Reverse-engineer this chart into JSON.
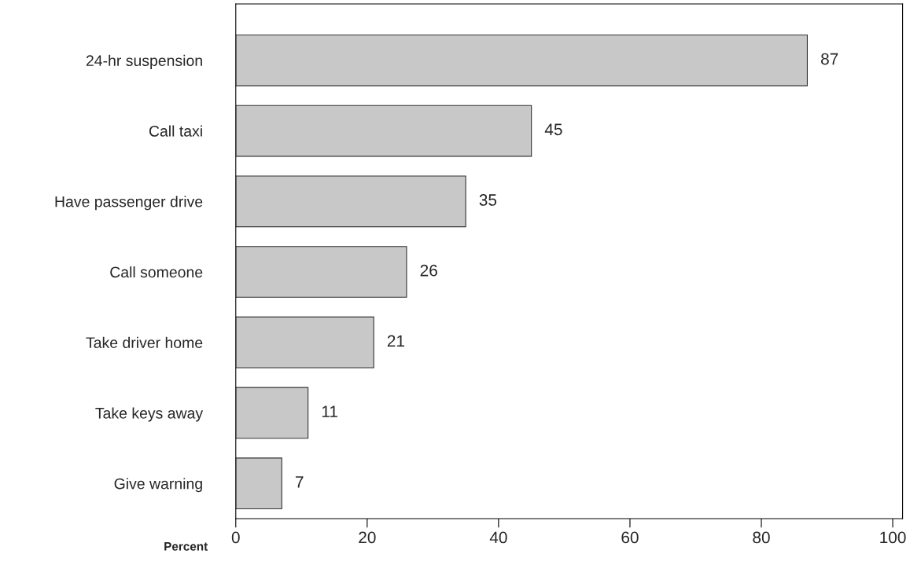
{
  "chart_data": {
    "type": "bar",
    "orientation": "horizontal",
    "xlabel": "Percent",
    "categories": [
      "24-hr suspension",
      "Call taxi",
      "Have passenger drive",
      "Call someone",
      "Take driver home",
      "Take keys away",
      "Give warning"
    ],
    "values": [
      87,
      45,
      35,
      26,
      21,
      11,
      7
    ],
    "color": "#c8c8c8",
    "xlim": [
      0,
      101.5
    ],
    "xticks": [
      0,
      20,
      40,
      60,
      80,
      100
    ],
    "data_labels": true,
    "grid": false,
    "legend": false
  }
}
